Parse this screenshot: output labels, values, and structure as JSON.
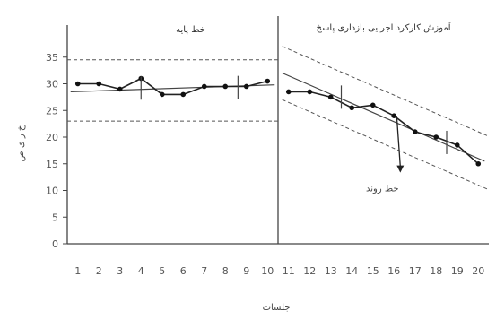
{
  "chart_data": {
    "type": "line",
    "phases": [
      {
        "label": "خط پایه",
        "sessions": [
          1,
          10
        ]
      },
      {
        "label": "آموزش کارکرد اجرایی بازداری پاسخ",
        "sessions": [
          11,
          20
        ]
      }
    ],
    "x": [
      1,
      2,
      3,
      4,
      5,
      6,
      7,
      8,
      9,
      10,
      11,
      12,
      13,
      14,
      15,
      16,
      17,
      18,
      19,
      20
    ],
    "xticks": [
      1,
      2,
      3,
      4,
      5,
      6,
      7,
      8,
      9,
      10,
      11,
      12,
      13,
      14,
      15,
      16,
      17,
      18,
      19,
      20
    ],
    "series": [
      {
        "values": [
          30,
          30,
          29,
          31,
          28,
          28,
          29.5,
          29.5,
          29.5,
          30.5,
          28.5,
          28.5,
          27.5,
          25.5,
          26,
          24,
          21,
          20,
          18.5,
          15
        ]
      }
    ],
    "baseline_trend": {
      "x": [
        1,
        10
      ],
      "y": [
        28.5,
        29.8
      ]
    },
    "baseline_band": {
      "upper": 34.5,
      "lower": 23
    },
    "intervention_trend": {
      "x": [
        11,
        20
      ],
      "y": [
        31.5,
        16
      ]
    },
    "intervention_band_offset": 5,
    "split_marks": [
      {
        "x": 4,
        "y": 29.2
      },
      {
        "x": 8.6,
        "y": 29.3
      },
      {
        "x": 13.5,
        "y": 27.5
      },
      {
        "x": 18.5,
        "y": 19
      }
    ],
    "trend_arrow": {
      "x": 16.3,
      "y_from": 24,
      "y_to": 13.5,
      "label": "خط روند"
    },
    "xlabel": "جلسات",
    "ylabel": "خ ر ی ص",
    "yticks": [
      0,
      5,
      10,
      15,
      20,
      25,
      30,
      35
    ],
    "ylim": [
      0,
      40
    ],
    "xlim": [
      0.5,
      20.5
    ],
    "grid": false
  }
}
